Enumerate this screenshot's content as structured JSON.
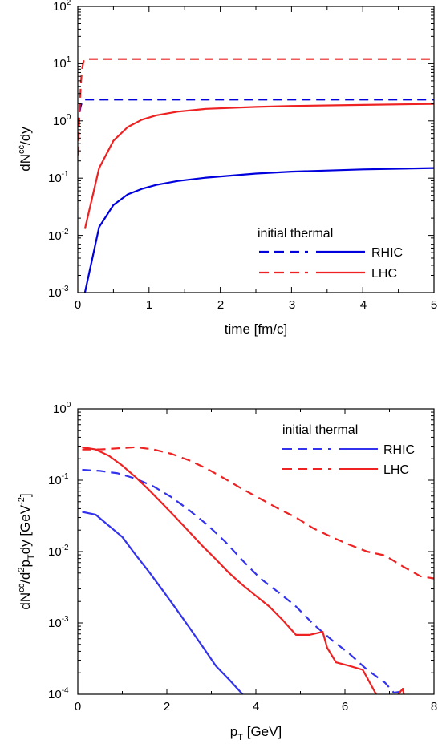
{
  "chart_data": [
    {
      "type": "line",
      "xlabel": "time [fm/c]",
      "ylabel": "dN^{c\\bar{c}}/dy",
      "xlim": [
        0,
        5
      ],
      "ylim": [
        0.001,
        100
      ],
      "yscale": "log",
      "x_ticks": [
        "0",
        "1",
        "2",
        "3",
        "4",
        "5"
      ],
      "y_ticks": [
        {
          "base": "10",
          "exp": "-3"
        },
        {
          "base": "10",
          "exp": "-2"
        },
        {
          "base": "10",
          "exp": "-1"
        },
        {
          "base": "10",
          "exp": "0"
        },
        {
          "base": "10",
          "exp": "1"
        },
        {
          "base": "10",
          "exp": "2"
        }
      ],
      "legend": {
        "header": "initial  thermal",
        "position": "bottom-right",
        "entries": [
          "RHIC",
          "LHC"
        ]
      },
      "series": [
        {
          "name": "RHIC",
          "kind": "initial",
          "style": "dashed",
          "color": "#0000dd",
          "x": [
            0.0,
            0.02,
            0.04,
            0.06,
            0.08,
            0.1,
            0.5,
            1,
            2,
            3,
            4,
            5
          ],
          "y": [
            0.8,
            1.3,
            1.8,
            2.1,
            2.3,
            2.35,
            2.35,
            2.35,
            2.35,
            2.35,
            2.35,
            2.35
          ]
        },
        {
          "name": "LHC",
          "kind": "initial",
          "style": "dashed",
          "color": "#ee2222",
          "x": [
            0.0,
            0.02,
            0.04,
            0.06,
            0.08,
            0.1,
            0.5,
            1,
            2,
            3,
            4,
            5
          ],
          "y": [
            0.25,
            1.0,
            4.0,
            8.0,
            11.0,
            12.0,
            12.0,
            12.0,
            12.0,
            12.0,
            12.0,
            12.0
          ]
        },
        {
          "name": "RHIC",
          "kind": "thermal",
          "style": "solid",
          "color": "#0000dd",
          "x": [
            0.1,
            0.3,
            0.5,
            0.7,
            0.9,
            1.1,
            1.4,
            1.8,
            2.5,
            3,
            4,
            5
          ],
          "y": [
            0.001,
            0.014,
            0.034,
            0.052,
            0.065,
            0.076,
            0.089,
            0.102,
            0.12,
            0.13,
            0.142,
            0.15
          ]
        },
        {
          "name": "LHC",
          "kind": "thermal",
          "style": "solid",
          "color": "#ee2222",
          "x": [
            0.1,
            0.3,
            0.5,
            0.7,
            0.9,
            1.1,
            1.4,
            1.8,
            2.5,
            3,
            4,
            5
          ],
          "y": [
            0.013,
            0.15,
            0.45,
            0.78,
            1.05,
            1.25,
            1.45,
            1.62,
            1.75,
            1.82,
            1.9,
            1.98
          ]
        }
      ]
    },
    {
      "type": "line",
      "xlabel": "p_T [GeV]",
      "ylabel": "dN^{c\\bar{c}}/d^2p_Tdy [GeV^{-2}]",
      "xlim": [
        0,
        8
      ],
      "ylim": [
        0.0001,
        1
      ],
      "yscale": "log",
      "x_ticks": [
        "0",
        "2",
        "4",
        "6",
        "8"
      ],
      "y_ticks": [
        {
          "base": "10",
          "exp": "-4"
        },
        {
          "base": "10",
          "exp": "-3"
        },
        {
          "base": "10",
          "exp": "-2"
        },
        {
          "base": "10",
          "exp": "-1"
        },
        {
          "base": "10",
          "exp": "0"
        }
      ],
      "legend": {
        "header": "initial  thermal",
        "position": "top-right",
        "entries": [
          "RHIC",
          "LHC"
        ]
      },
      "series": [
        {
          "name": "RHIC",
          "kind": "initial",
          "style": "dashed",
          "color": "#3333ee",
          "x": [
            0.1,
            0.5,
            0.9,
            1.3,
            1.7,
            2.1,
            2.5,
            2.9,
            3.3,
            3.7,
            4.1,
            4.5,
            4.9,
            5.3,
            5.7,
            6.1,
            6.5,
            6.9,
            7.1,
            7.3
          ],
          "y": [
            0.14,
            0.135,
            0.125,
            0.105,
            0.082,
            0.058,
            0.038,
            0.024,
            0.014,
            0.0075,
            0.0042,
            0.0027,
            0.0017,
            0.00095,
            0.00058,
            0.00037,
            0.00022,
            0.000145,
            0.000105,
            0.00011
          ]
        },
        {
          "name": "LHC",
          "kind": "initial",
          "style": "dashed",
          "color": "#ee2222",
          "x": [
            0.1,
            0.5,
            0.9,
            1.3,
            1.7,
            2.1,
            2.5,
            2.9,
            3.3,
            3.7,
            4.1,
            4.5,
            4.9,
            5.3,
            5.7,
            6.1,
            6.5,
            6.9,
            7.3,
            7.7,
            8.0
          ],
          "y": [
            0.27,
            0.27,
            0.28,
            0.29,
            0.27,
            0.235,
            0.19,
            0.145,
            0.105,
            0.075,
            0.055,
            0.04,
            0.03,
            0.021,
            0.016,
            0.0125,
            0.01,
            0.0088,
            0.0062,
            0.0045,
            0.0042
          ]
        },
        {
          "name": "RHIC",
          "kind": "thermal",
          "style": "solid",
          "color": "#3333ee",
          "x": [
            0.1,
            0.4,
            0.7,
            1.0,
            1.3,
            1.6,
            1.9,
            2.2,
            2.5,
            2.8,
            3.1,
            3.4,
            3.7
          ],
          "y": [
            0.036,
            0.033,
            0.023,
            0.016,
            0.009,
            0.0052,
            0.0029,
            0.0016,
            0.00087,
            0.00047,
            0.00025,
            0.00016,
            0.0001
          ]
        },
        {
          "name": "LHC",
          "kind": "thermal",
          "style": "solid",
          "color": "#ee2222",
          "x": [
            0.1,
            0.4,
            0.7,
            1.0,
            1.3,
            1.6,
            1.9,
            2.2,
            2.5,
            2.8,
            3.1,
            3.4,
            3.7,
            4.0,
            4.3,
            4.6,
            4.9,
            5.2,
            5.5,
            5.6,
            5.8,
            6.1,
            6.4,
            6.7,
            6.9,
            7.2,
            7.3,
            7.4
          ],
          "y": [
            0.29,
            0.27,
            0.22,
            0.16,
            0.11,
            0.073,
            0.047,
            0.03,
            0.019,
            0.012,
            0.0078,
            0.005,
            0.0034,
            0.0024,
            0.0017,
            0.0011,
            0.00068,
            0.00068,
            0.00075,
            0.00045,
            0.00028,
            0.00025,
            0.00022,
            0.0001,
            7.5e-05,
            0.0001,
            0.00012,
            5.5e-05
          ]
        }
      ]
    }
  ]
}
